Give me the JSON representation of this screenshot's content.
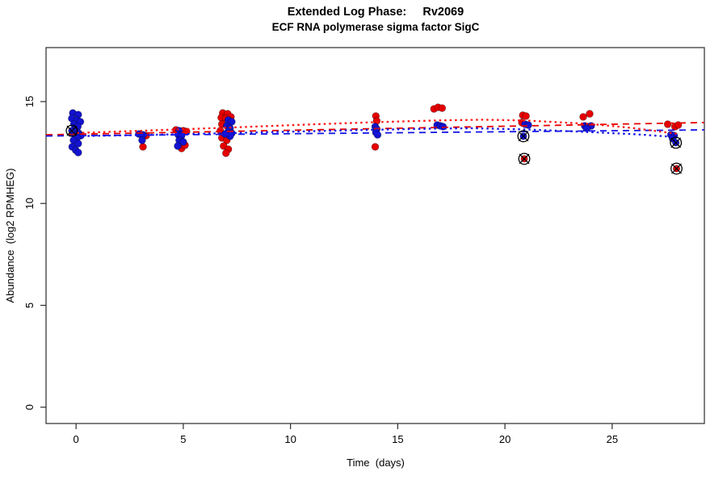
{
  "chart_data": {
    "type": "scatter",
    "title": "Extended Log Phase:     Rv2069",
    "subtitle": "ECF RNA polymerase sigma factor SigC",
    "xlabel": "Time  (days)",
    "ylabel": "Abundance  (log2 RPMHEG)",
    "xlim": [
      -1.4,
      29.3
    ],
    "ylim": [
      -0.8,
      17.65
    ],
    "x_ticks": [
      0,
      5,
      10,
      15,
      20,
      25
    ],
    "y_ticks": [
      0,
      5,
      10,
      15
    ],
    "grid": false,
    "legend": "none",
    "colors": {
      "red": "#e60000",
      "blue": "#1212d0",
      "axis": "#2b2b2b",
      "outlier_ring": "#000000"
    },
    "series": [
      {
        "name": "red-points",
        "color": "#e60000",
        "points": [
          [
            3.27,
            13.33
          ],
          [
            3.12,
            12.78
          ],
          [
            4.66,
            13.61
          ],
          [
            5.0,
            13.57
          ],
          [
            5.15,
            13.53
          ],
          [
            4.92,
            12.7
          ],
          [
            5.08,
            12.86
          ],
          [
            6.84,
            14.44
          ],
          [
            7.07,
            14.4
          ],
          [
            6.77,
            14.21
          ],
          [
            6.99,
            14.17
          ],
          [
            7.22,
            14.25
          ],
          [
            6.8,
            13.89
          ],
          [
            7.1,
            13.85
          ],
          [
            6.73,
            13.57
          ],
          [
            6.8,
            13.22
          ],
          [
            7.03,
            13.1
          ],
          [
            6.88,
            12.82
          ],
          [
            7.1,
            12.66
          ],
          [
            6.99,
            12.47
          ],
          [
            13.98,
            14.29
          ],
          [
            14.02,
            14.05
          ],
          [
            13.95,
            12.78
          ],
          [
            16.69,
            14.64
          ],
          [
            16.88,
            14.72
          ],
          [
            17.07,
            14.68
          ],
          [
            20.83,
            14.33
          ],
          [
            20.98,
            14.29
          ],
          [
            20.79,
            13.97
          ],
          [
            23.65,
            14.25
          ],
          [
            23.95,
            14.4
          ],
          [
            27.59,
            13.89
          ],
          [
            27.93,
            13.77
          ],
          [
            28.08,
            13.85
          ]
        ]
      },
      {
        "name": "blue-points",
        "color": "#1212d0",
        "points": [
          [
            -0.15,
            14.44
          ],
          [
            0.1,
            14.36
          ],
          [
            -0.2,
            14.17
          ],
          [
            0.05,
            14.09
          ],
          [
            0.2,
            14.01
          ],
          [
            -0.1,
            13.89
          ],
          [
            0.08,
            13.77
          ],
          [
            -0.08,
            13.61
          ],
          [
            0.0,
            13.53
          ],
          [
            0.12,
            13.45
          ],
          [
            0.22,
            13.33
          ],
          [
            0.05,
            13.22
          ],
          [
            -0.12,
            13.1
          ],
          [
            0.1,
            12.94
          ],
          [
            -0.18,
            12.78
          ],
          [
            -0.02,
            12.62
          ],
          [
            0.1,
            12.5
          ],
          [
            2.93,
            13.41
          ],
          [
            3.12,
            13.37
          ],
          [
            3.08,
            13.1
          ],
          [
            4.81,
            13.57
          ],
          [
            4.77,
            13.37
          ],
          [
            4.92,
            13.33
          ],
          [
            4.81,
            13.1
          ],
          [
            5.0,
            13.02
          ],
          [
            4.74,
            12.82
          ],
          [
            7.1,
            14.09
          ],
          [
            7.26,
            14.01
          ],
          [
            7.03,
            13.81
          ],
          [
            7.18,
            13.69
          ],
          [
            7.1,
            13.53
          ],
          [
            7.26,
            13.45
          ],
          [
            7.18,
            13.3
          ],
          [
            6.95,
            13.41
          ],
          [
            13.95,
            13.77
          ],
          [
            14.02,
            13.65
          ],
          [
            13.98,
            13.49
          ],
          [
            14.06,
            13.37
          ],
          [
            16.84,
            13.85
          ],
          [
            16.99,
            13.81
          ],
          [
            17.11,
            13.77
          ],
          [
            20.94,
            13.89
          ],
          [
            21.09,
            13.85
          ],
          [
            23.72,
            13.81
          ],
          [
            23.87,
            13.77
          ],
          [
            24.02,
            13.81
          ],
          [
            23.8,
            13.69
          ],
          [
            27.74,
            13.37
          ],
          [
            27.89,
            13.33
          ],
          [
            27.82,
            13.18
          ]
        ]
      }
    ],
    "outliers": [
      {
        "x": -0.2,
        "y": 13.57,
        "series": "blue"
      },
      {
        "x": 20.86,
        "y": 13.3,
        "series": "blue"
      },
      {
        "x": 20.9,
        "y": 12.19,
        "series": "red"
      },
      {
        "x": 27.97,
        "y": 12.98,
        "series": "blue"
      },
      {
        "x": 28.0,
        "y": 11.71,
        "series": "red"
      }
    ],
    "trend_lines": [
      {
        "name": "red-dashed",
        "style": "dashed",
        "color": "#e60000",
        "points": [
          [
            -1.4,
            13.37
          ],
          [
            29.3,
            13.97
          ]
        ]
      },
      {
        "name": "blue-dashed",
        "style": "dashed",
        "color": "#1414e6",
        "points": [
          [
            -1.4,
            13.31
          ],
          [
            29.3,
            13.61
          ]
        ]
      },
      {
        "name": "red-dotted",
        "style": "dotted",
        "color": "#ff1414",
        "points": [
          [
            -0.2,
            13.45
          ],
          [
            3,
            13.57
          ],
          [
            7,
            13.72
          ],
          [
            11,
            13.88
          ],
          [
            14,
            13.99
          ],
          [
            17,
            14.08
          ],
          [
            19,
            14.11
          ],
          [
            21,
            14.07
          ],
          [
            24,
            13.9
          ],
          [
            26,
            13.7
          ],
          [
            28,
            13.42
          ]
        ]
      },
      {
        "name": "blue-dotted",
        "style": "dotted",
        "color": "#1414e6",
        "points": [
          [
            -0.2,
            13.3
          ],
          [
            3,
            13.36
          ],
          [
            7,
            13.45
          ],
          [
            11,
            13.55
          ],
          [
            14,
            13.62
          ],
          [
            17,
            13.68
          ],
          [
            18.5,
            13.69
          ],
          [
            21,
            13.63
          ],
          [
            24,
            13.5
          ],
          [
            26,
            13.4
          ],
          [
            28,
            13.26
          ]
        ]
      }
    ]
  }
}
